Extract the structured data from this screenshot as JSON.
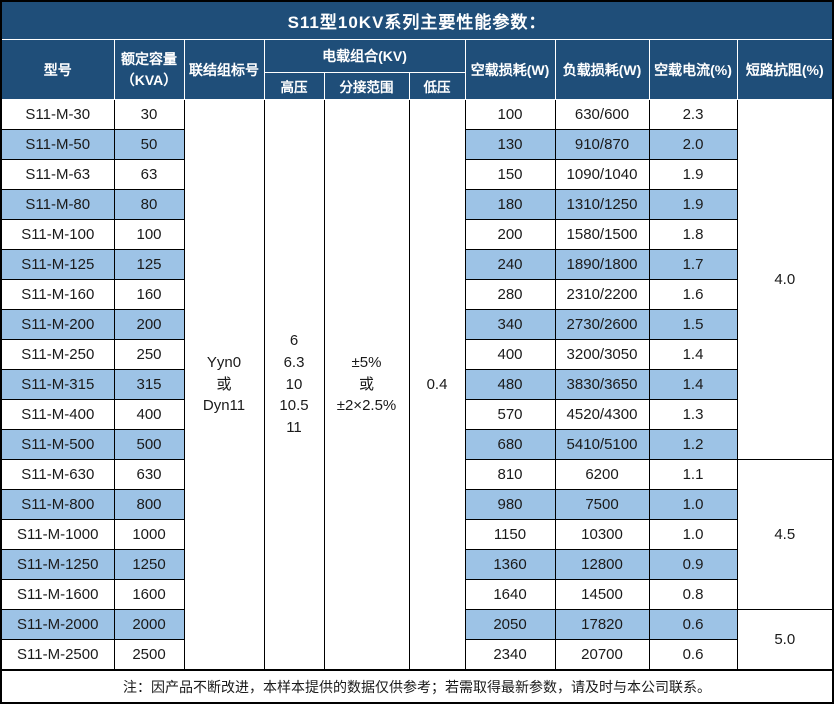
{
  "title": "S11型10KV系列主要性能参数：",
  "note": "注：因产品不断改进，本样本提供的数据仅供参考；若需取得最新参数，请及时与本公司联系。",
  "colors": {
    "header_bg": "#1F4E79",
    "header_text": "#FFFFFF",
    "band_bg": "#9DC3E6",
    "border": "#000000"
  },
  "header": {
    "model": "型号",
    "capacity": "额定容量\n（KVA）",
    "connection": "联结组标号",
    "voltage_combo": "电载组合(KV)",
    "hv": "高压",
    "tap_range": "分接范围",
    "lv": "低压",
    "no_load_loss": "空载损耗(W)",
    "load_loss": "负载损耗(W)",
    "no_load_current": "空载电流(%)",
    "short_circuit_impedance": "短路抗阻(%)"
  },
  "shared": {
    "connection": "Yyn0\n或\nDyn11",
    "hv": "6\n6.3\n10\n10.5\n11",
    "tap_range": "±5%\n或\n±2×2.5%",
    "lv": "0.4"
  },
  "impedance_groups": [
    {
      "value": "4.0",
      "rows": 12
    },
    {
      "value": "4.5",
      "rows": 5
    },
    {
      "value": "5.0",
      "rows": 2
    }
  ],
  "rows": [
    [
      "S11-M-30",
      "30",
      "100",
      "630/600",
      "2.3"
    ],
    [
      "S11-M-50",
      "50",
      "130",
      "910/870",
      "2.0"
    ],
    [
      "S11-M-63",
      "63",
      "150",
      "1090/1040",
      "1.9"
    ],
    [
      "S11-M-80",
      "80",
      "180",
      "1310/1250",
      "1.9"
    ],
    [
      "S11-M-100",
      "100",
      "200",
      "1580/1500",
      "1.8"
    ],
    [
      "S11-M-125",
      "125",
      "240",
      "1890/1800",
      "1.7"
    ],
    [
      "S11-M-160",
      "160",
      "280",
      "2310/2200",
      "1.6"
    ],
    [
      "S11-M-200",
      "200",
      "340",
      "2730/2600",
      "1.5"
    ],
    [
      "S11-M-250",
      "250",
      "400",
      "3200/3050",
      "1.4"
    ],
    [
      "S11-M-315",
      "315",
      "480",
      "3830/3650",
      "1.4"
    ],
    [
      "S11-M-400",
      "400",
      "570",
      "4520/4300",
      "1.3"
    ],
    [
      "S11-M-500",
      "500",
      "680",
      "5410/5100",
      "1.2"
    ],
    [
      "S11-M-630",
      "630",
      "810",
      "6200",
      "1.1"
    ],
    [
      "S11-M-800",
      "800",
      "980",
      "7500",
      "1.0"
    ],
    [
      "S11-M-1000",
      "1000",
      "1150",
      "10300",
      "1.0"
    ],
    [
      "S11-M-1250",
      "1250",
      "1360",
      "12800",
      "0.9"
    ],
    [
      "S11-M-1600",
      "1600",
      "1640",
      "14500",
      "0.8"
    ],
    [
      "S11-M-2000",
      "2000",
      "2050",
      "17820",
      "0.6"
    ],
    [
      "S11-M-2500",
      "2500",
      "2340",
      "20700",
      "0.6"
    ]
  ]
}
